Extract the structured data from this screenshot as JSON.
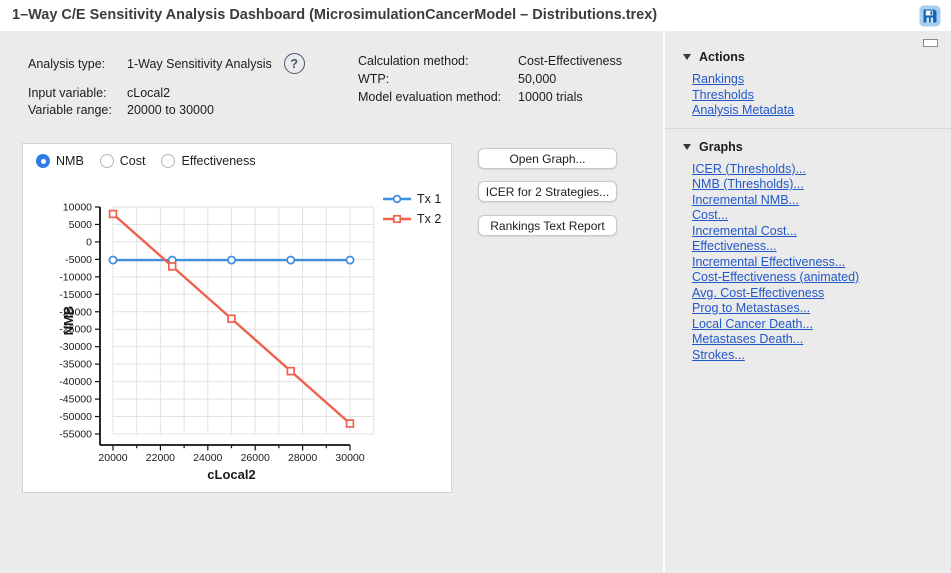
{
  "window": {
    "title": "1–Way C/E Sensitivity Analysis Dashboard (MicrosimulationCancerModel – Distributions.trex)"
  },
  "icons": {
    "save": "floppy-disk",
    "help_glyph": "?",
    "section_disclosure": "triangle-down",
    "sidebar_collapse": "minimize-rectangle"
  },
  "info": {
    "left": [
      {
        "label": "Analysis type:",
        "value": "1-Way Sensitivity Analysis",
        "help": true
      },
      {
        "label": "Input variable:",
        "value": "cLocal2",
        "help": false
      },
      {
        "label": "Variable range:",
        "value": "20000 to 30000",
        "help": false
      }
    ],
    "right": [
      {
        "label": "Calculation method:",
        "value": "Cost-Effectiveness"
      },
      {
        "label": "WTP:",
        "value": "50,000"
      },
      {
        "label": "Model evaluation method:",
        "value": "10000 trials"
      }
    ]
  },
  "chart_panel": {
    "radios": [
      {
        "label": "NMB",
        "selected": true
      },
      {
        "label": "Cost",
        "selected": false
      },
      {
        "label": "Effectiveness",
        "selected": false
      }
    ]
  },
  "chart_data": {
    "type": "line",
    "title": "",
    "xlabel": "cLocal2",
    "ylabel": "NMB",
    "x": [
      20000,
      22500,
      25000,
      27500,
      30000
    ],
    "series": [
      {
        "name": "Tx 1",
        "color": "#3f8ee0",
        "marker": "circle",
        "values": [
          -5200,
          -5200,
          -5200,
          -5200,
          -5200
        ]
      },
      {
        "name": "Tx 2",
        "color": "#f0604d",
        "marker": "square",
        "values": [
          8000,
          -7000,
          -22000,
          -37000,
          -52000
        ]
      }
    ],
    "xlim": [
      20000,
      30000
    ],
    "ylim": [
      -55000,
      10000
    ],
    "xticks_labeled": [
      20000,
      22000,
      24000,
      26000,
      28000,
      30000
    ],
    "xtick_minor_step": 1000,
    "ytick_step": 5000,
    "grid": true,
    "grid_x_extend": 31000,
    "legend_position": "top-right",
    "grid_color": "#e2e2e2",
    "axis_color": "#111111"
  },
  "buttons": [
    "Open Graph...",
    "ICER for 2 Strategies...",
    "Rankings Text Report"
  ],
  "sidebar": {
    "sections": [
      {
        "title": "Actions",
        "links": [
          "Rankings",
          "Thresholds",
          "Analysis Metadata"
        ]
      },
      {
        "title": "Graphs",
        "links": [
          "ICER (Thresholds)...",
          "NMB (Thresholds)...",
          "Incremental NMB...",
          "Cost...",
          "Incremental Cost...",
          "Effectiveness...",
          "Incremental Effectiveness...",
          "Cost-Effectiveness (animated)",
          "Avg. Cost-Effectiveness",
          "Prog to Metastases...",
          "Local Cancer Death...",
          "Metastases Death...",
          "Strokes..."
        ]
      }
    ]
  },
  "colors": {
    "link": "#2158c8",
    "radio_selected": "#2e7ceb",
    "background": "#ebebeb",
    "panel": "#ffffff"
  }
}
